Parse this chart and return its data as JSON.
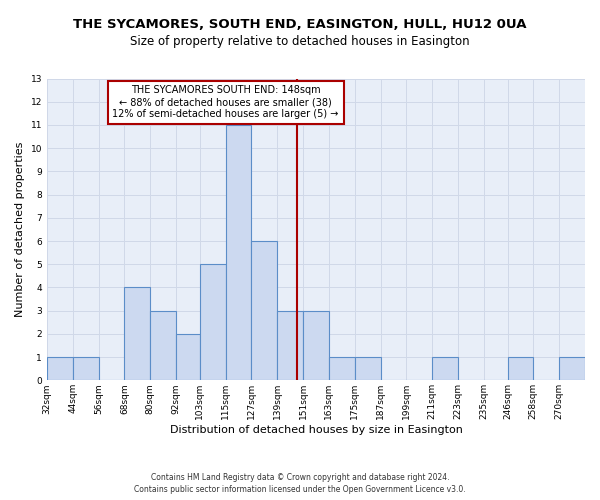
{
  "title": "THE SYCAMORES, SOUTH END, EASINGTON, HULL, HU12 0UA",
  "subtitle": "Size of property relative to detached houses in Easington",
  "xlabel": "Distribution of detached houses by size in Easington",
  "ylabel": "Number of detached properties",
  "bins": [
    32,
    44,
    56,
    68,
    80,
    92,
    103,
    115,
    127,
    139,
    151,
    163,
    175,
    187,
    199,
    211,
    223,
    235,
    246,
    258,
    270
  ],
  "counts": [
    1,
    1,
    0,
    4,
    3,
    2,
    5,
    11,
    6,
    3,
    3,
    1,
    1,
    0,
    0,
    1,
    0,
    0,
    1,
    0,
    1
  ],
  "bar_color": "#ccd9f0",
  "bar_edge_color": "#5b8dc8",
  "vline_x": 148,
  "vline_color": "#aa0000",
  "annotation_text": "THE SYCAMORES SOUTH END: 148sqm\n← 88% of detached houses are smaller (38)\n12% of semi-detached houses are larger (5) →",
  "annotation_box_color": "#ffffff",
  "annotation_box_edge": "#aa0000",
  "ylim": [
    0,
    13
  ],
  "yticks": [
    0,
    1,
    2,
    3,
    4,
    5,
    6,
    7,
    8,
    9,
    10,
    11,
    12,
    13
  ],
  "grid_color": "#d0d8e8",
  "bg_color": "#e8eef8",
  "footer1": "Contains HM Land Registry data © Crown copyright and database right 2024.",
  "footer2": "Contains public sector information licensed under the Open Government Licence v3.0.",
  "title_fontsize": 9.5,
  "subtitle_fontsize": 8.5,
  "tick_fontsize": 6.5,
  "ylabel_fontsize": 8,
  "xlabel_fontsize": 8,
  "annot_fontsize": 7,
  "footer_fontsize": 5.5
}
